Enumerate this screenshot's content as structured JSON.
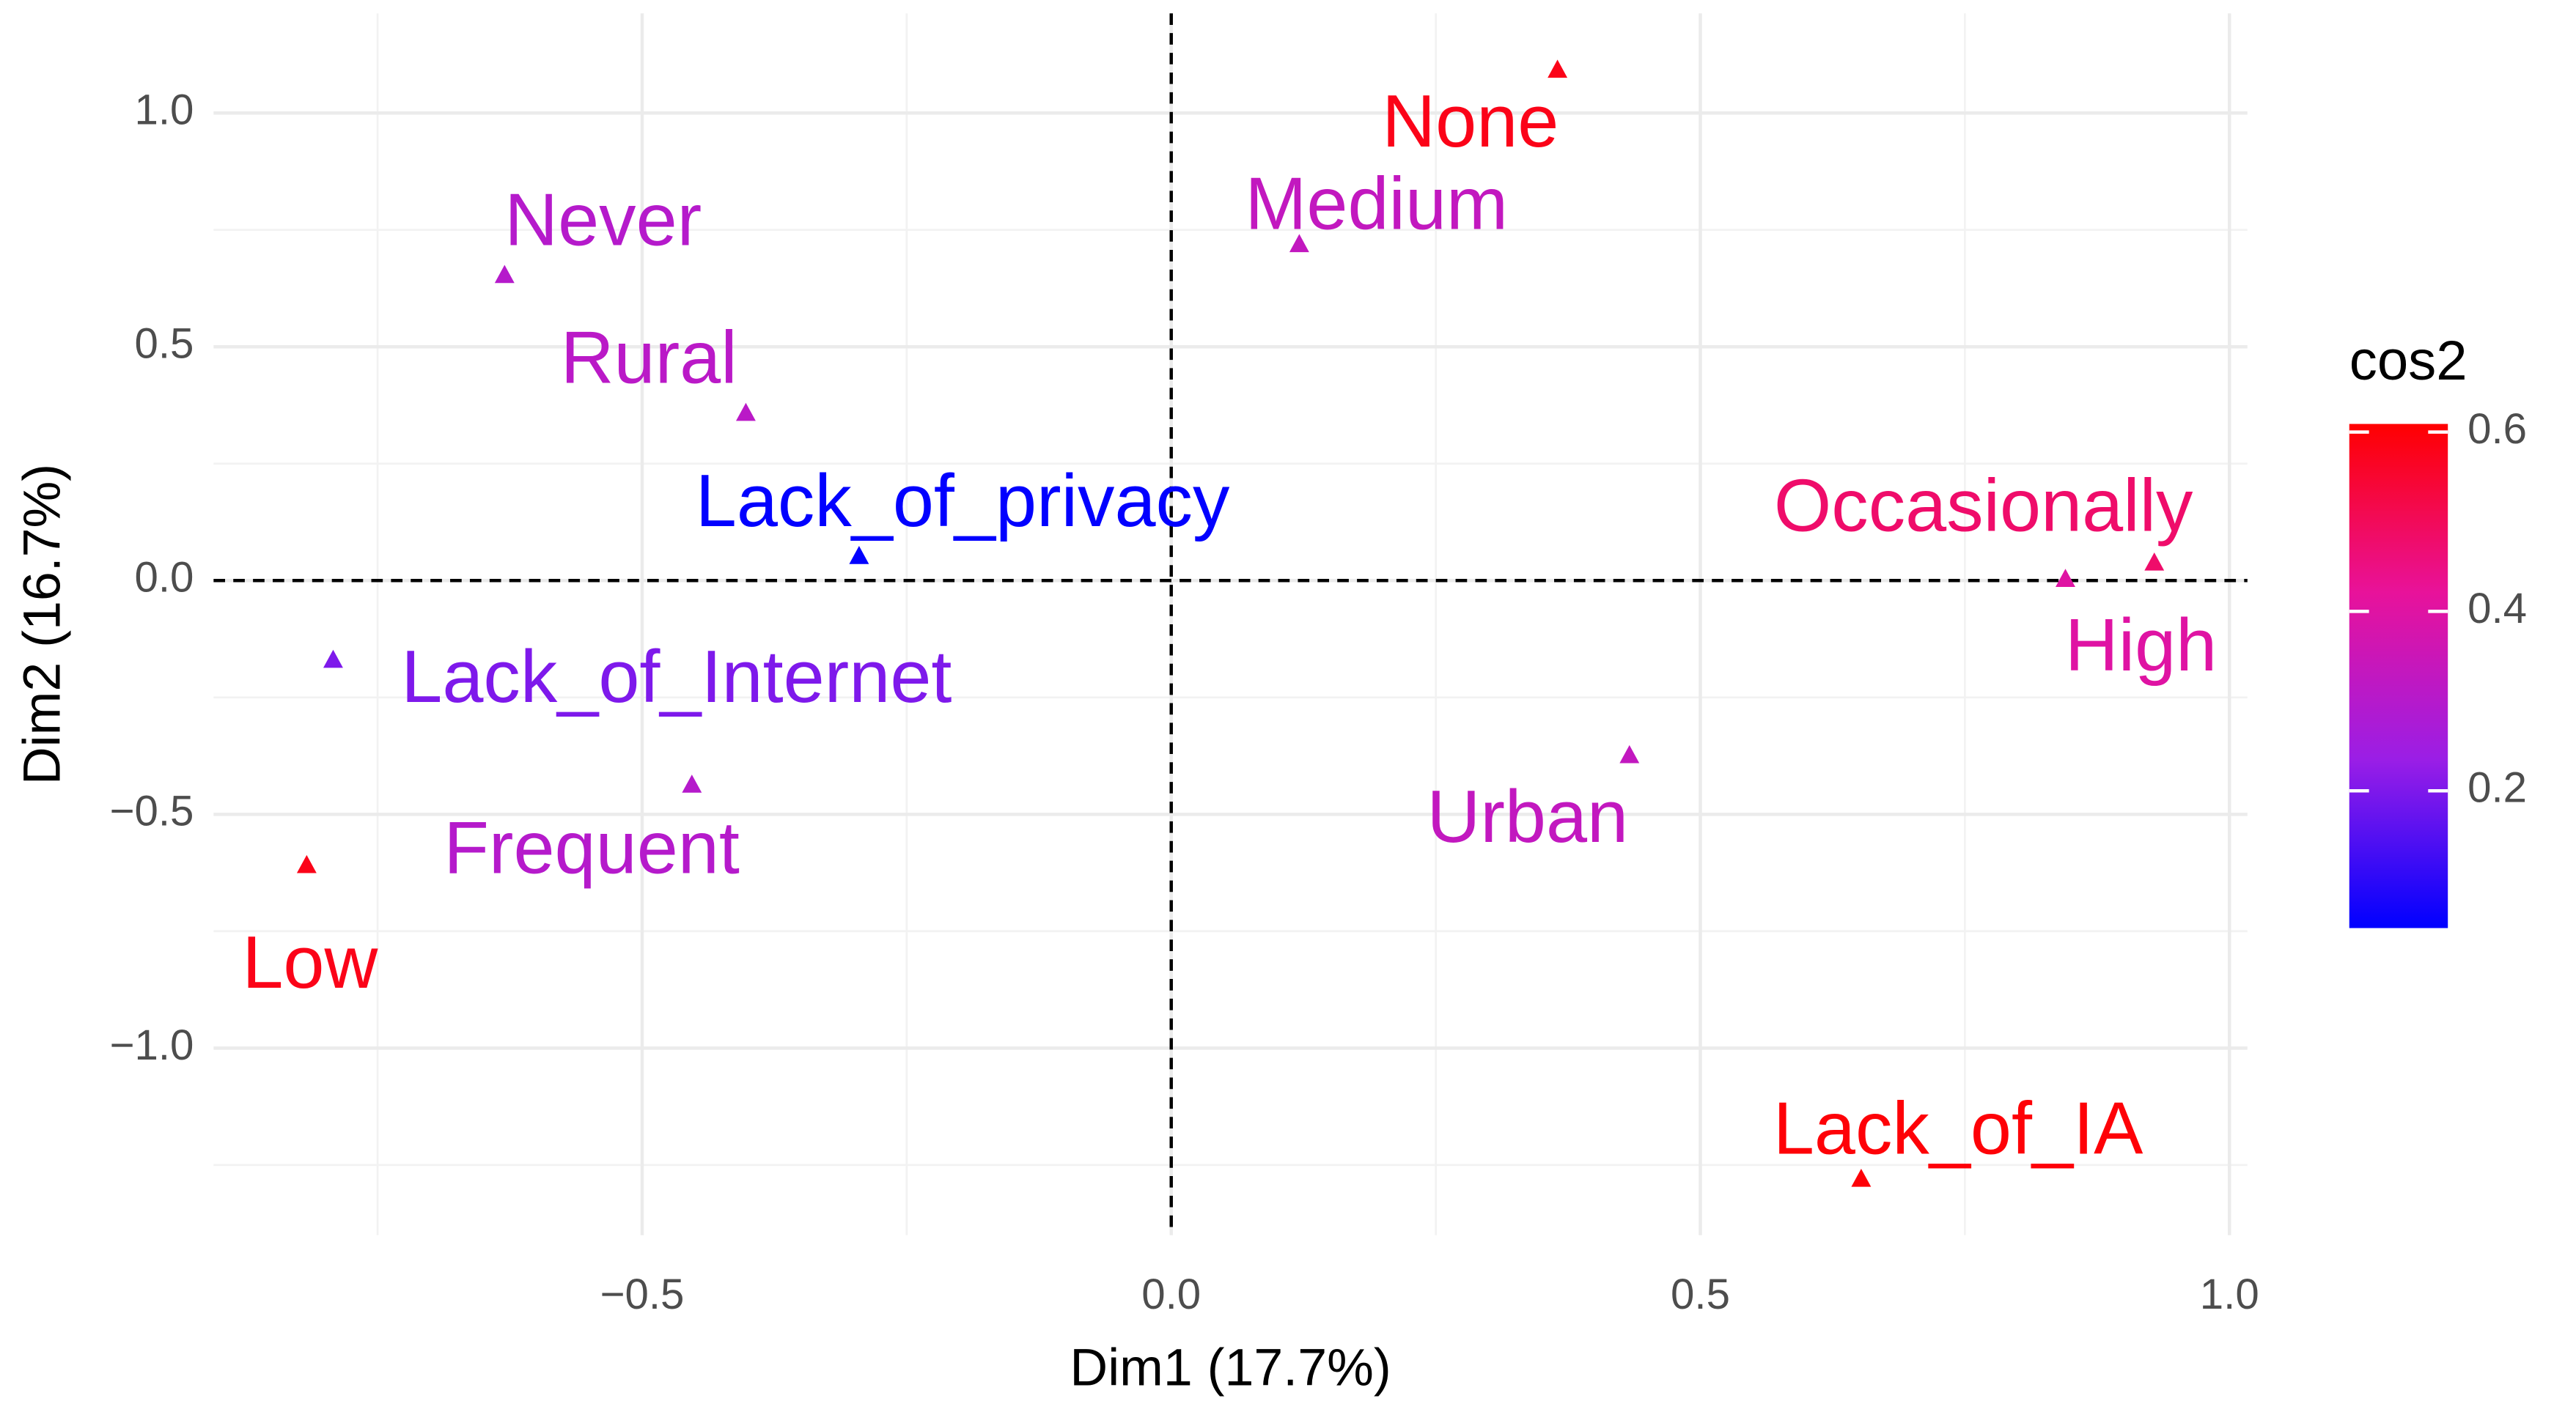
{
  "chart_data": {
    "type": "scatter",
    "x_label": "Dim1 (17.7%)",
    "y_label": "Dim2 (16.7%)",
    "xlim": [
      -0.905,
      1.017
    ],
    "ylim": [
      -1.4,
      1.213
    ],
    "xticks": [
      {
        "value": -0.5,
        "label": "−0.5"
      },
      {
        "value": 0,
        "label": "0.0"
      },
      0.5,
      {
        "value": 1,
        "label": "1.0"
      }
    ],
    "yticks": [
      {
        "value": -1,
        "label": "−1.0"
      },
      {
        "value": -0.5,
        "label": "−0.5"
      },
      {
        "value": 0,
        "label": "0.0"
      },
      0.5,
      {
        "value": 1,
        "label": "1.0"
      }
    ],
    "grid": true,
    "hline": 0,
    "vline": 0,
    "points": [
      {
        "label": "None",
        "x": 0.365,
        "y": 1.093,
        "cos2": 0.58
      },
      {
        "label": "Medium",
        "x": 0.121,
        "y": 0.72,
        "cos2": 0.33
      },
      {
        "label": "Never",
        "x": -0.63,
        "y": 0.654,
        "cos2": 0.3
      },
      {
        "label": "Rural",
        "x": -0.402,
        "y": 0.359,
        "cos2": 0.31
      },
      {
        "label": "Lack_of_privacy",
        "x": -0.295,
        "y": 0.053,
        "cos2": 0.05
      },
      {
        "label": "Occasionally",
        "x": 0.929,
        "y": 0.039,
        "cos2": 0.48
      },
      {
        "label": "High",
        "x": 0.845,
        "y": 0.004,
        "cos2": 0.4
      },
      {
        "label": "Lack_of_Internet",
        "x": -0.792,
        "y": -0.169,
        "cos2": 0.2
      },
      {
        "label": "Urban",
        "x": 0.433,
        "y": -0.373,
        "cos2": 0.33
      },
      {
        "label": "Frequent",
        "x": -0.453,
        "y": -0.436,
        "cos2": 0.3
      },
      {
        "label": "Low",
        "x": -0.817,
        "y": -0.608,
        "cos2": 0.58
      },
      {
        "label": "Lack_of_IA",
        "x": 0.652,
        "y": -1.279,
        "cos2": 0.6
      }
    ],
    "legend_title": "cos2",
    "color_range": [
      0.047,
      0.609
    ],
    "color_ticks": [
      0.2,
      0.4,
      0.6
    ],
    "color_stops": [
      "#0000ff",
      "#9a1ee6",
      "#e8129a",
      "#ff0000"
    ]
  }
}
